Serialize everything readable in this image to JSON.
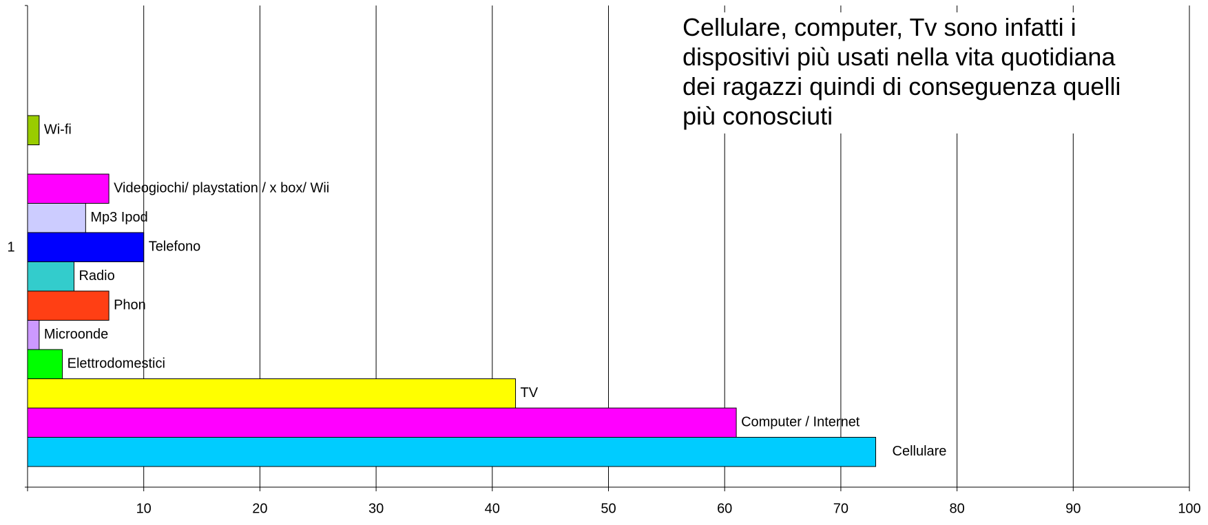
{
  "chart_data": {
    "type": "bar",
    "orientation": "horizontal",
    "annotation": "Cellulare, computer, Tv sono infatti i dispositivi più usati nella vita quotidiana dei ragazzi quindi di conseguenza quelli più conosciuti",
    "categories": [
      "1"
    ],
    "series": [
      {
        "name": "Cellulare",
        "color": "#00ccff",
        "values": [
          73
        ]
      },
      {
        "name": "Computer / Internet",
        "color": "#ff00ff",
        "values": [
          61
        ]
      },
      {
        "name": "TV",
        "color": "#ffff00",
        "values": [
          42
        ]
      },
      {
        "name": "Elettrodomestici",
        "color": "#00ff00",
        "values": [
          3
        ]
      },
      {
        "name": "Microonde",
        "color": "#cc99ff",
        "values": [
          1
        ]
      },
      {
        "name": "Phon",
        "color": "#ff3f14",
        "values": [
          7
        ]
      },
      {
        "name": "Radio",
        "color": "#33cccc",
        "values": [
          4
        ]
      },
      {
        "name": "Telefono",
        "color": "#0000ff",
        "values": [
          10
        ]
      },
      {
        "name": "Mp3 Ipod",
        "color": "#ccccff",
        "values": [
          5
        ]
      },
      {
        "name": "Videogiochi/ playstation / x box/ Wii",
        "color": "#ff00ff",
        "values": [
          7
        ]
      },
      {
        "name": "Wi-fi",
        "color": "#99cc00",
        "values": [
          1
        ]
      }
    ],
    "xlim": [
      0,
      100
    ],
    "xticks": [
      10,
      20,
      30,
      40,
      50,
      60,
      70,
      80,
      90,
      100
    ],
    "grid": true
  }
}
